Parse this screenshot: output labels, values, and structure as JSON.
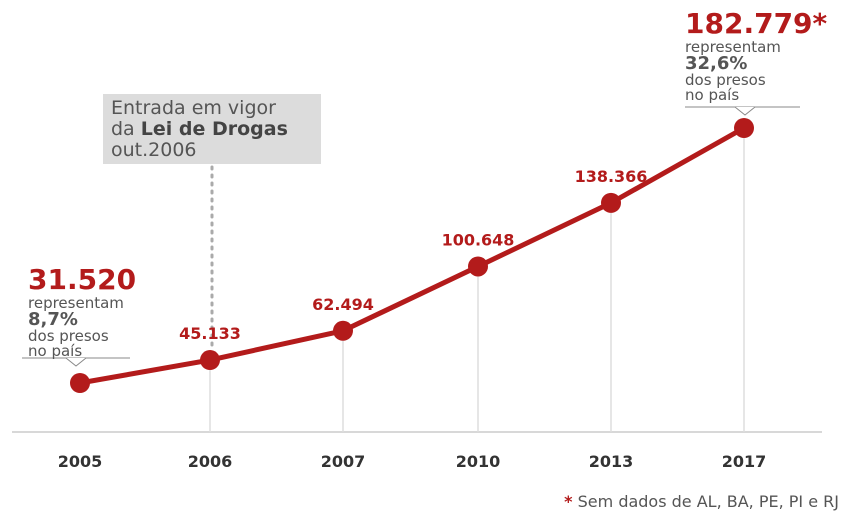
{
  "chart_data": {
    "type": "line",
    "categories": [
      "2005",
      "2006",
      "2007",
      "2010",
      "2013",
      "2017"
    ],
    "values": [
      31520,
      45133,
      62494,
      100648,
      138366,
      182779
    ],
    "data_labels": [
      "31.520",
      "45.133",
      "62.494",
      "100.648",
      "138.366",
      "182.779*"
    ],
    "title": "",
    "xlabel": "",
    "ylabel": "",
    "grid": false,
    "color": "#b31b1b"
  },
  "annotations": {
    "law": {
      "line1": "Entrada em vigor",
      "line2_prefix": "da ",
      "line2_bold": "Lei de Drogas",
      "line3": "out.2006"
    },
    "first": {
      "value": "31.520",
      "line1": "representam",
      "pct": "8,7%",
      "line2": "dos presos",
      "line3": "no país"
    },
    "last": {
      "value": "182.779",
      "star": "*",
      "line1": "representam",
      "pct": "32,6%",
      "line2": "dos presos",
      "line3": "no país"
    }
  },
  "footnote": {
    "star": "*",
    "text": "Sem dados de AL, BA, PE, PI e RJ"
  }
}
